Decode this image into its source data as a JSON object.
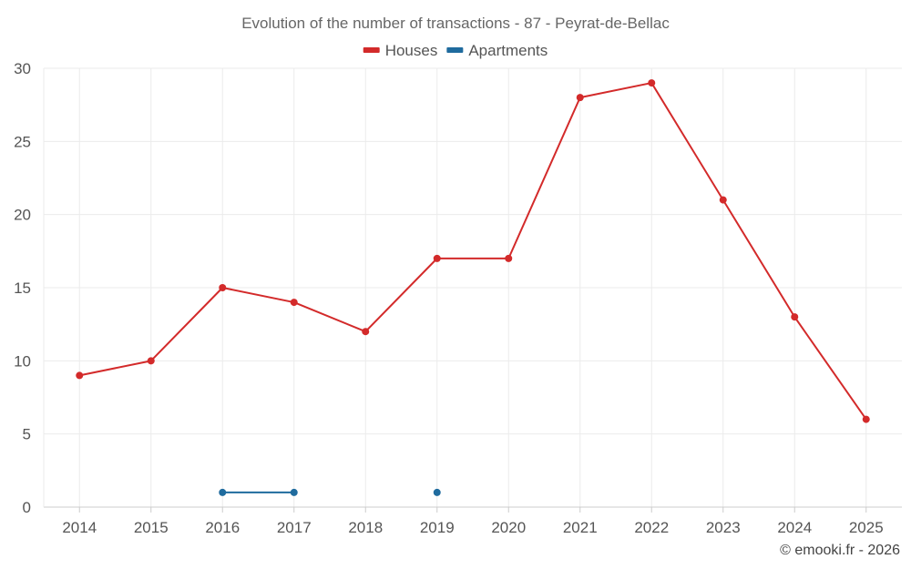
{
  "chart_data": {
    "type": "line",
    "title": "Evolution of the number of transactions - 87 - Peyrat-de-Bellac",
    "categories": [
      "2014",
      "2015",
      "2016",
      "2017",
      "2018",
      "2019",
      "2020",
      "2021",
      "2022",
      "2023",
      "2024",
      "2025"
    ],
    "ylim": [
      0,
      30
    ],
    "yticks": [
      0,
      5,
      10,
      15,
      20,
      25,
      30
    ],
    "grid": true,
    "legend_position": "top-center",
    "series": [
      {
        "name": "Houses",
        "color": "#d32a2a",
        "values": [
          9,
          10,
          15,
          14,
          12,
          17,
          17,
          28,
          29,
          21,
          13,
          6
        ]
      },
      {
        "name": "Apartments",
        "color": "#1f6b9e",
        "values": [
          null,
          null,
          1,
          1,
          null,
          1,
          null,
          null,
          null,
          null,
          null,
          null
        ]
      }
    ]
  },
  "credit": "© emooki.fr - 2026"
}
